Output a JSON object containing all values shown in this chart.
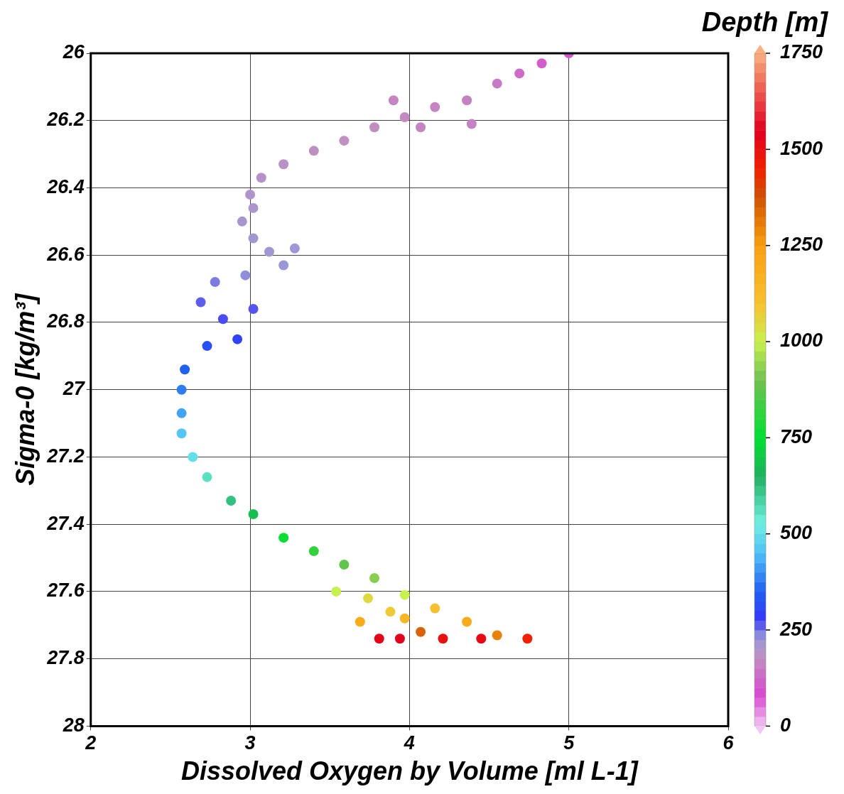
{
  "chart_data": {
    "type": "scatter",
    "xlabel": "Dissolved Oxygen by Volume [ml L-1]",
    "ylabel": "Sigma-0 [kg/m³]",
    "clabel": "Depth [m]",
    "x": [
      5.0,
      4.83,
      4.69,
      4.55,
      4.36,
      4.16,
      3.97,
      3.78,
      3.59,
      3.4,
      3.21,
      3.07,
      3.0,
      3.02,
      2.95,
      3.02,
      3.12,
      3.28,
      3.21,
      2.97,
      2.78,
      2.69,
      2.83,
      3.02,
      2.92,
      2.73,
      2.59,
      2.57,
      2.57,
      2.57,
      2.64,
      2.73,
      2.88,
      3.02,
      3.21,
      3.4,
      3.59,
      3.78,
      3.97,
      4.16,
      4.36,
      4.55,
      4.74,
      3.54,
      3.74,
      3.69,
      3.97,
      4.07,
      4.21,
      4.45,
      3.81,
      3.94,
      3.88,
      3.9,
      4.39,
      4.07
    ],
    "values": [
      26.0,
      26.03,
      26.06,
      26.09,
      26.14,
      26.16,
      26.19,
      26.22,
      26.26,
      26.29,
      26.33,
      26.37,
      26.42,
      26.46,
      26.5,
      26.55,
      26.59,
      26.58,
      26.63,
      26.66,
      26.68,
      26.74,
      26.79,
      26.76,
      26.85,
      26.87,
      26.94,
      27.0,
      27.07,
      27.13,
      27.2,
      27.26,
      27.33,
      27.37,
      27.44,
      27.48,
      27.52,
      27.56,
      27.61,
      27.65,
      27.69,
      27.73,
      27.74,
      27.6,
      27.62,
      27.69,
      27.68,
      27.72,
      27.74,
      27.74,
      27.74,
      27.74,
      27.66,
      26.14,
      26.21,
      26.22
    ],
    "cvalues": [
      100,
      110,
      130,
      150,
      160,
      165,
      170,
      175,
      180,
      185,
      190,
      195,
      200,
      205,
      210,
      215,
      220,
      225,
      230,
      235,
      245,
      260,
      270,
      265,
      300,
      320,
      350,
      380,
      420,
      460,
      500,
      560,
      620,
      680,
      760,
      820,
      880,
      930,
      1000,
      1100,
      1200,
      1300,
      1450,
      1000,
      1050,
      1200,
      1150,
      1350,
      1500,
      1520,
      1530,
      1540,
      1080,
      165,
      160,
      165
    ],
    "xlim": [
      2,
      6
    ],
    "xticks": [
      2,
      3,
      4,
      5,
      6
    ],
    "ylim": [
      28,
      26
    ],
    "yticks": [
      26,
      26.2,
      26.4,
      26.6,
      26.8,
      27,
      27.2,
      27.4,
      27.6,
      27.8,
      28
    ],
    "clim": [
      0,
      1750
    ],
    "cticks": [
      0,
      250,
      500,
      750,
      1000,
      1250,
      1500,
      1750
    ],
    "grid": true,
    "marker": "circle",
    "legend": false
  }
}
